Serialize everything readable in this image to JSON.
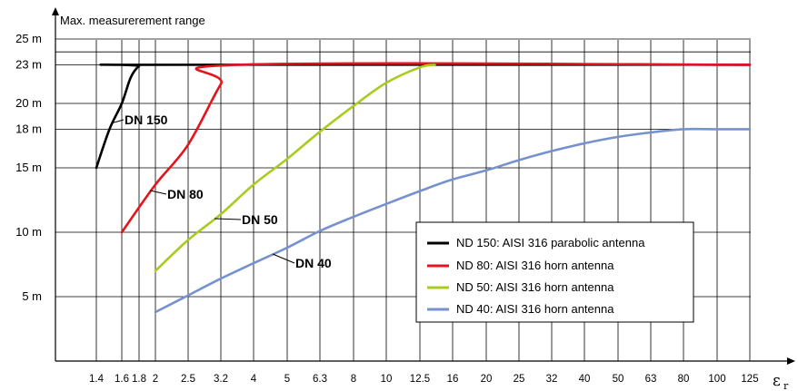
{
  "chart_data": {
    "type": "line",
    "title": "Max. measurerement range",
    "xlabel": "εr",
    "x_categories": [
      "1.4",
      "1.6",
      "1.8",
      "2",
      "2.5",
      "3.2",
      "4",
      "5",
      "6.3",
      "8",
      "10",
      "12.5",
      "16",
      "20",
      "25",
      "32",
      "40",
      "50",
      "63",
      "80",
      "100",
      "125"
    ],
    "y_ticks": [
      {
        "label": "25 m",
        "value": 25
      },
      {
        "label": "23 m",
        "value": 23
      },
      {
        "label": "20 m",
        "value": 20
      },
      {
        "label": "18 m",
        "value": 18
      },
      {
        "label": "15 m",
        "value": 15
      },
      {
        "label": "10 m",
        "value": 10
      },
      {
        "label": "5 m",
        "value": 5
      }
    ],
    "ylim": [
      0,
      26
    ],
    "grid": true,
    "legend_position": "bottom-right",
    "series": [
      {
        "name": "ND 150: AISI 316 parabolic antenna",
        "curve_label": "DN 150",
        "color": "#000000",
        "points": [
          [
            1.4,
            15
          ],
          [
            1.5,
            18
          ],
          [
            1.6,
            20
          ],
          [
            1.7,
            22
          ],
          [
            1.8,
            22.9
          ],
          [
            1.9,
            23
          ],
          [
            125,
            23
          ]
        ]
      },
      {
        "name": "ND 80: AISI 316 horn antenna",
        "curve_label": "DN 80",
        "color": "#e3141b",
        "points": [
          [
            1.6,
            10
          ],
          [
            2,
            13.7
          ],
          [
            2.5,
            16.8
          ],
          [
            3.2,
            21.5
          ],
          [
            3.6,
            23
          ],
          [
            125,
            23
          ]
        ]
      },
      {
        "name": "ND 50: AISI 316 horn antenna",
        "curve_label": "DN 50",
        "color": "#a8cc1e",
        "points": [
          [
            2,
            7
          ],
          [
            2.5,
            9.4
          ],
          [
            3.2,
            11.4
          ],
          [
            4,
            13.7
          ],
          [
            5,
            15.7
          ],
          [
            6.3,
            17.8
          ],
          [
            8,
            19.8
          ],
          [
            10,
            21.6
          ],
          [
            12.5,
            22.8
          ],
          [
            14,
            23
          ]
        ]
      },
      {
        "name": "ND 40: AISI 316 horn antenna",
        "curve_label": "DN 40",
        "color": "#7592cf",
        "points": [
          [
            2,
            3.8
          ],
          [
            2.5,
            5.1
          ],
          [
            3.2,
            6.4
          ],
          [
            4,
            7.6
          ],
          [
            5,
            8.8
          ],
          [
            6.3,
            10.1
          ],
          [
            8,
            11.2
          ],
          [
            10,
            12.2
          ],
          [
            12.5,
            13.2
          ],
          [
            16,
            14.1
          ],
          [
            20,
            14.8
          ],
          [
            25,
            15.6
          ],
          [
            32,
            16.3
          ],
          [
            40,
            16.9
          ],
          [
            50,
            17.4
          ],
          [
            63,
            17.75
          ],
          [
            80,
            18
          ],
          [
            100,
            18
          ],
          [
            125,
            18
          ]
        ]
      }
    ]
  }
}
